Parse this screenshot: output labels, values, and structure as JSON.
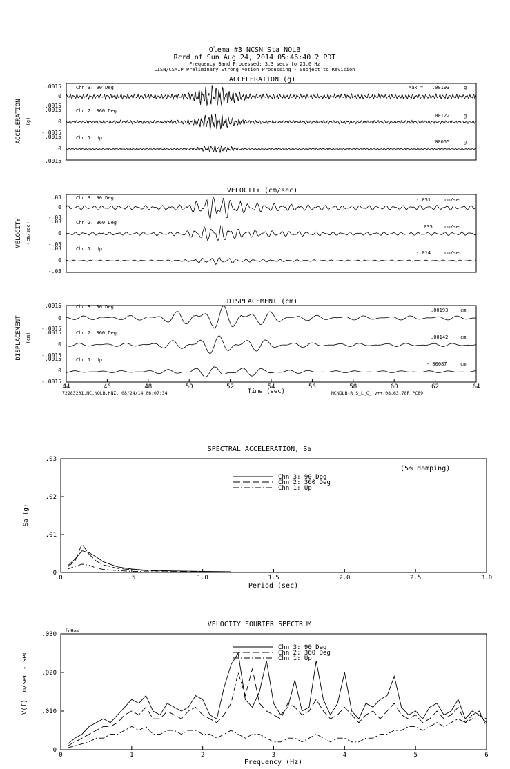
{
  "header": {
    "line1": "Olema #3    NCSN Sta NOLB",
    "line2": "Rcrd of Sun Aug 24, 2014 05:46:40.2 PDT",
    "line3": "Frequency Band Processed: 3.3 secs to 23.0 Hz",
    "line4": "CISN/CSMIP Preliminary Strong Motion Processing - Subject to Revision"
  },
  "time_series": {
    "x_ticks": [
      44,
      46,
      48,
      50,
      52,
      54,
      56,
      58,
      60,
      62,
      64
    ],
    "xlabel": "Time (sec)",
    "footer_left": "72283201.NC.NOLB.HNZ. 08/24/14 06:07:34",
    "footer_right": "NCNOLB-R  S_L_C_  v++.08.63.78R PC89",
    "panels": [
      {
        "title": "ACCELERATION (g)",
        "ylabel": "ACCELERATION",
        "yunit": "(g)",
        "tick_top": ".0015",
        "tick_zero": "0",
        "tick_bottom": "-.0015",
        "channels": [
          {
            "name": "Chn 3: 90 Deg",
            "max_prefix": "Max = ",
            "max": ".00193",
            "unit": "g",
            "peak": 0.00193
          },
          {
            "name": "Chn 2: 360 Deg",
            "max_prefix": "",
            "max": ".00122",
            "unit": "g",
            "peak": 0.00122
          },
          {
            "name": "Chn 1: Up",
            "max_prefix": "",
            "max": ".00055",
            "unit": "g",
            "peak": 0.00055
          }
        ]
      },
      {
        "title": "VELOCITY (cm/sec)",
        "ylabel": "VELOCITY",
        "yunit": "(cm/sec)",
        "tick_top": ".03",
        "tick_zero": "0",
        "tick_bottom": "-.03",
        "channels": [
          {
            "name": "Chn 3: 90 Deg",
            "max_prefix": "",
            "max": "-.051",
            "unit": "cm/sec",
            "peak": -0.051
          },
          {
            "name": "Chn 2: 360 Deg",
            "max_prefix": "",
            "max": ".035",
            "unit": "cm/sec",
            "peak": 0.035
          },
          {
            "name": "Chn 1: Up",
            "max_prefix": "",
            "max": "-.014",
            "unit": "cm/sec",
            "peak": -0.014
          }
        ]
      },
      {
        "title": "DISPLACEMENT (cm)",
        "ylabel": "DISPLACEMENT",
        "yunit": "(cm)",
        "tick_top": ".0015",
        "tick_zero": "0",
        "tick_bottom": "-.0015",
        "channels": [
          {
            "name": "Chn 3: 90 Deg",
            "max_prefix": "",
            "max": ".00193",
            "unit": "cm",
            "peak": 0.00193
          },
          {
            "name": "Chn 2: 360 Deg",
            "max_prefix": "",
            "max": ".00142",
            "unit": "cm",
            "peak": 0.00142
          },
          {
            "name": "Chn 1: Up",
            "max_prefix": "",
            "max": "-.00087",
            "unit": "cm",
            "peak": -0.00087
          }
        ]
      }
    ]
  },
  "spectral": {
    "title": "SPECTRAL ACCELERATION, Sa",
    "note": "(5% damping)",
    "ylabel": "Sa (g)",
    "xlabel": "Period (sec)",
    "y_ticks": [
      ".03",
      ".02",
      ".01",
      "0"
    ],
    "x_ticks": [
      "0",
      ".5",
      "1.0",
      "1.5",
      "2.0",
      "2.5",
      "3.0"
    ],
    "legend": [
      "Chn 3: 90 Deg",
      "Chn 2: 360 Deg",
      "Chn 1: Up"
    ]
  },
  "fourier": {
    "title": "VELOCITY FOURIER SPECTRUM",
    "corner": "fcHaw",
    "ylabel": "V(f)   cm/sec - sec",
    "xlabel": "Frequency (Hz)",
    "y_ticks": [
      ".030",
      ".020",
      ".010",
      "0"
    ],
    "x_ticks": [
      "0",
      "1",
      "2",
      "3",
      "4",
      "5",
      "6"
    ],
    "legend": [
      "Chn 3: 90 Deg",
      "Chn 2: 360 Deg",
      "Chn 1: Up"
    ]
  },
  "chart_data": [
    {
      "type": "line",
      "title": "ACCELERATION (g)",
      "xlabel": "Time (sec)",
      "xlim": [
        44,
        64
      ],
      "ylim": [
        -0.0015,
        0.0015
      ],
      "series": [
        {
          "name": "Chn 3: 90 Deg",
          "peak": 0.00193
        },
        {
          "name": "Chn 2: 360 Deg",
          "peak": 0.00122
        },
        {
          "name": "Chn 1: Up",
          "peak": 0.00055
        }
      ]
    },
    {
      "type": "line",
      "title": "VELOCITY (cm/sec)",
      "xlabel": "Time (sec)",
      "xlim": [
        44,
        64
      ],
      "ylim": [
        -0.03,
        0.03
      ],
      "series": [
        {
          "name": "Chn 3: 90 Deg",
          "peak": -0.051
        },
        {
          "name": "Chn 2: 360 Deg",
          "peak": 0.035
        },
        {
          "name": "Chn 1: Up",
          "peak": -0.014
        }
      ]
    },
    {
      "type": "line",
      "title": "DISPLACEMENT (cm)",
      "xlabel": "Time (sec)",
      "xlim": [
        44,
        64
      ],
      "ylim": [
        -0.0015,
        0.0015
      ],
      "series": [
        {
          "name": "Chn 3: 90 Deg",
          "peak": 0.00193
        },
        {
          "name": "Chn 2: 360 Deg",
          "peak": 0.00142
        },
        {
          "name": "Chn 1: Up",
          "peak": -0.00087
        }
      ]
    },
    {
      "type": "line",
      "title": "SPECTRAL ACCELERATION, Sa",
      "xlabel": "Period (sec)",
      "ylabel": "Sa (g)",
      "xlim": [
        0,
        3.0
      ],
      "ylim": [
        0,
        0.03
      ],
      "x": [
        0.05,
        0.1,
        0.15,
        0.2,
        0.25,
        0.3,
        0.4,
        0.5,
        0.6,
        0.8,
        1.0,
        1.2
      ],
      "series": [
        {
          "name": "Chn 3: 90 Deg",
          "values": [
            0.0018,
            0.0035,
            0.0057,
            0.0052,
            0.0041,
            0.0028,
            0.0015,
            0.0009,
            0.0006,
            0.0004,
            0.0003,
            0.0002
          ]
        },
        {
          "name": "Chn 2: 360 Deg",
          "values": [
            0.0015,
            0.003,
            0.0075,
            0.0048,
            0.003,
            0.002,
            0.0011,
            0.0007,
            0.0005,
            0.0003,
            0.0002,
            0.0001
          ]
        },
        {
          "name": "Chn 1: Up",
          "values": [
            0.0009,
            0.0016,
            0.0022,
            0.0019,
            0.0012,
            0.0008,
            0.0005,
            0.0003,
            0.0002,
            0.0001,
            0.0001,
            0.0001
          ]
        }
      ]
    },
    {
      "type": "line",
      "title": "VELOCITY FOURIER SPECTRUM",
      "xlabel": "Frequency (Hz)",
      "ylabel": "V(f)   cm/sec - sec",
      "xlim": [
        0,
        6
      ],
      "ylim": [
        0,
        0.03
      ],
      "x": [
        0.1,
        0.2,
        0.3,
        0.4,
        0.5,
        0.6,
        0.7,
        0.8,
        0.9,
        1.0,
        1.1,
        1.2,
        1.3,
        1.4,
        1.5,
        1.6,
        1.7,
        1.8,
        1.9,
        2.0,
        2.1,
        2.2,
        2.3,
        2.4,
        2.5,
        2.6,
        2.7,
        2.8,
        2.9,
        3.0,
        3.1,
        3.2,
        3.3,
        3.4,
        3.5,
        3.6,
        3.7,
        3.8,
        3.9,
        4.0,
        4.1,
        4.2,
        4.3,
        4.4,
        4.5,
        4.6,
        4.7,
        4.8,
        4.9,
        5.0,
        5.1,
        5.2,
        5.3,
        5.4,
        5.5,
        5.6,
        5.7,
        5.8,
        5.9,
        6.0
      ],
      "series": [
        {
          "name": "Chn 3: 90 Deg",
          "values": [
            0.0015,
            0.003,
            0.004,
            0.006,
            0.007,
            0.008,
            0.007,
            0.009,
            0.011,
            0.013,
            0.012,
            0.014,
            0.01,
            0.009,
            0.012,
            0.011,
            0.01,
            0.011,
            0.014,
            0.013,
            0.009,
            0.008,
            0.016,
            0.022,
            0.025,
            0.013,
            0.011,
            0.015,
            0.023,
            0.012,
            0.009,
            0.011,
            0.018,
            0.01,
            0.011,
            0.023,
            0.013,
            0.009,
            0.012,
            0.02,
            0.01,
            0.008,
            0.012,
            0.011,
            0.013,
            0.014,
            0.019,
            0.011,
            0.009,
            0.01,
            0.008,
            0.011,
            0.012,
            0.009,
            0.01,
            0.013,
            0.008,
            0.01,
            0.009,
            0.007
          ]
        },
        {
          "name": "Chn 2: 360 Deg",
          "values": [
            0.001,
            0.002,
            0.003,
            0.004,
            0.005,
            0.006,
            0.006,
            0.007,
            0.009,
            0.01,
            0.009,
            0.011,
            0.008,
            0.008,
            0.01,
            0.009,
            0.008,
            0.01,
            0.011,
            0.009,
            0.008,
            0.007,
            0.009,
            0.012,
            0.02,
            0.014,
            0.021,
            0.012,
            0.01,
            0.009,
            0.008,
            0.012,
            0.011,
            0.009,
            0.01,
            0.013,
            0.01,
            0.008,
            0.009,
            0.011,
            0.009,
            0.007,
            0.009,
            0.01,
            0.008,
            0.01,
            0.012,
            0.009,
            0.008,
            0.009,
            0.007,
            0.008,
            0.01,
            0.008,
            0.009,
            0.011,
            0.007,
            0.009,
            0.01,
            0.006
          ]
        },
        {
          "name": "Chn 1: Up",
          "values": [
            0.0005,
            0.001,
            0.0015,
            0.002,
            0.003,
            0.003,
            0.004,
            0.004,
            0.005,
            0.006,
            0.005,
            0.006,
            0.004,
            0.004,
            0.005,
            0.005,
            0.004,
            0.005,
            0.005,
            0.004,
            0.004,
            0.003,
            0.004,
            0.005,
            0.004,
            0.003,
            0.004,
            0.004,
            0.003,
            0.002,
            0.002,
            0.003,
            0.003,
            0.002,
            0.003,
            0.004,
            0.003,
            0.002,
            0.003,
            0.003,
            0.002,
            0.002,
            0.003,
            0.003,
            0.004,
            0.004,
            0.005,
            0.005,
            0.006,
            0.006,
            0.005,
            0.006,
            0.007,
            0.006,
            0.007,
            0.008,
            0.007,
            0.008,
            0.009,
            0.008
          ]
        }
      ]
    }
  ]
}
